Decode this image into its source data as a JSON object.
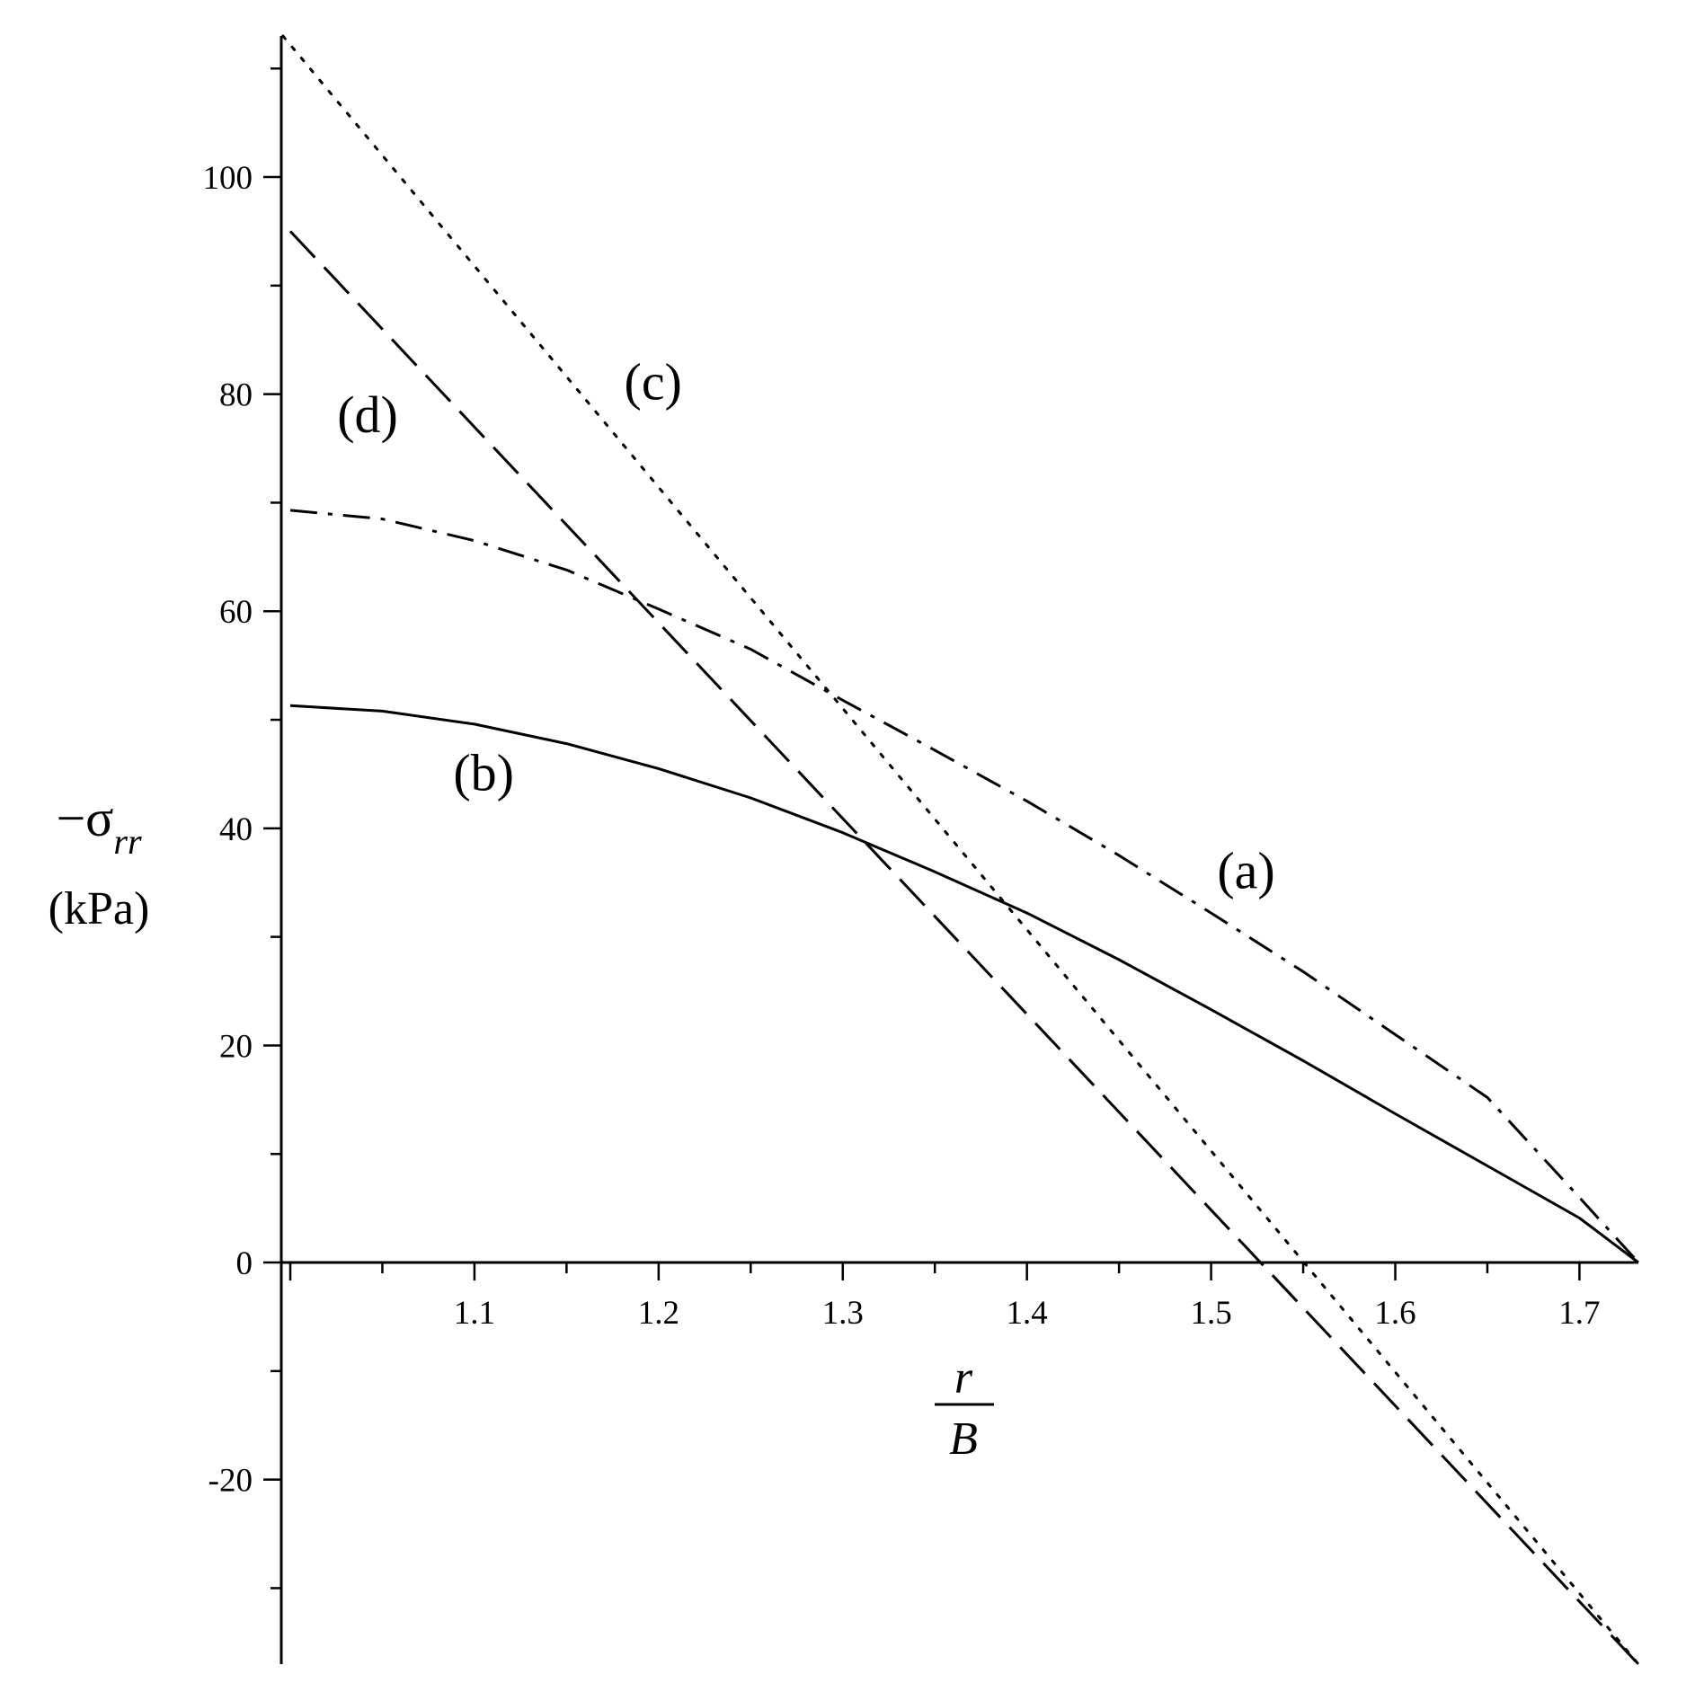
{
  "chart_data": {
    "type": "line",
    "xlabel": {
      "numerator": "r",
      "denominator": "B"
    },
    "ylabel": {
      "prefix": "−",
      "symbol": "σ",
      "subscript": "rr",
      "unit": "(kPa)"
    },
    "xlim": [
      1.0,
      1.732
    ],
    "ylim": [
      -37,
      113
    ],
    "x_ticks": [
      1.1,
      1.2,
      1.3,
      1.4,
      1.5,
      1.6,
      1.7
    ],
    "x_tick_labels": [
      "1.1",
      "1.2",
      "1.3",
      "1.4",
      "1.5",
      "1.6",
      "1.7"
    ],
    "y_ticks": [
      -20,
      0,
      20,
      40,
      60,
      80,
      100
    ],
    "y_tick_labels": [
      "-20",
      "0",
      "20",
      "40",
      "60",
      "80",
      "100"
    ],
    "series": [
      {
        "name": "(a)",
        "style": "dashdot",
        "x": [
          1.0,
          1.05,
          1.1,
          1.15,
          1.2,
          1.25,
          1.3,
          1.35,
          1.4,
          1.45,
          1.5,
          1.55,
          1.6,
          1.65,
          1.7,
          1.732
        ],
        "y": [
          69.3,
          68.5,
          66.5,
          63.8,
          60.2,
          56.5,
          51.8,
          47.2,
          42.5,
          37.5,
          32.2,
          26.8,
          21.0,
          15.2,
          6.0,
          0
        ]
      },
      {
        "name": "(b)",
        "style": "solid",
        "x": [
          1.0,
          1.05,
          1.1,
          1.15,
          1.2,
          1.25,
          1.3,
          1.35,
          1.4,
          1.45,
          1.5,
          1.55,
          1.6,
          1.65,
          1.7,
          1.732
        ],
        "y": [
          51.3,
          50.8,
          49.6,
          47.8,
          45.5,
          42.8,
          39.6,
          36.0,
          32.2,
          27.9,
          23.3,
          18.6,
          13.7,
          8.9,
          4.1,
          0
        ]
      },
      {
        "name": "(c)",
        "style": "dotted",
        "x": [
          0.996,
          1.732
        ],
        "y": [
          113.0,
          -37.0
        ]
      },
      {
        "name": "(d)",
        "style": "dashed",
        "x": [
          1.0,
          1.732
        ],
        "y": [
          95.0,
          -37.0
        ]
      }
    ],
    "labels": [
      {
        "text": "(a)",
        "x": 1.519,
        "y": 34.5
      },
      {
        "text": "(b)",
        "x": 1.105,
        "y": 43.5
      },
      {
        "text": "(c)",
        "x": 1.197,
        "y": 79.5
      },
      {
        "text": "(d)",
        "x": 1.042,
        "y": 76.5
      }
    ]
  }
}
